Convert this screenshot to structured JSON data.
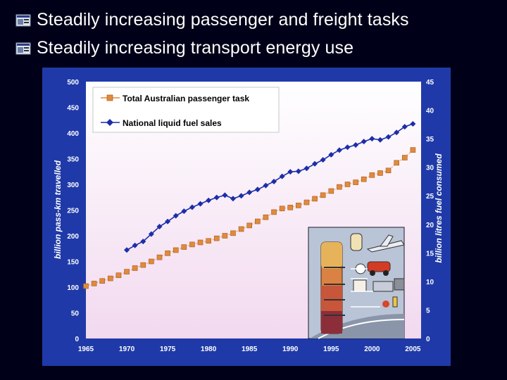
{
  "slide": {
    "bullets": [
      {
        "text": "Steadily increasing passenger and freight tasks",
        "icon": "slide-bullet-icon"
      },
      {
        "text": "Steadily increasing transport energy use",
        "icon": "slide-bullet-icon"
      }
    ]
  },
  "colors": {
    "background": "#000018",
    "chart_panel": "#1f3aa8",
    "plot_top": "#ffffff",
    "plot_bottom": "#f2d9ef",
    "passenger_series": "#e08a3c",
    "fuel_series": "#1c2ea8"
  },
  "chart_data": {
    "type": "line",
    "title": "",
    "x": [
      1965,
      1966,
      1967,
      1968,
      1969,
      1970,
      1971,
      1972,
      1973,
      1974,
      1975,
      1976,
      1977,
      1978,
      1979,
      1980,
      1981,
      1982,
      1983,
      1984,
      1985,
      1986,
      1987,
      1988,
      1989,
      1990,
      1991,
      1992,
      1993,
      1994,
      1995,
      1996,
      1997,
      1998,
      1999,
      2000,
      2001,
      2002,
      2003,
      2004,
      2005
    ],
    "xlim": [
      1965,
      2006
    ],
    "xticks": [
      "1965",
      "1970",
      "1975",
      "1980",
      "1985",
      "1990",
      "1995",
      "2000",
      "2005"
    ],
    "xlabel": "",
    "ylabel": "billion pass-km travelled",
    "ylim": [
      0,
      500
    ],
    "yticks": [
      "0",
      "50",
      "100",
      "150",
      "200",
      "250",
      "300",
      "350",
      "400",
      "450",
      "500"
    ],
    "y2label": "billion litres fuel consumed",
    "y2lim": [
      0,
      45
    ],
    "y2ticks": [
      "0",
      "5",
      "10",
      "15",
      "20",
      "25",
      "30",
      "35",
      "40",
      "45"
    ],
    "series": [
      {
        "name": "Total Australian passenger task",
        "axis": "left",
        "marker": "square",
        "values": [
          102,
          107,
          112,
          117,
          123,
          130,
          137,
          143,
          150,
          158,
          166,
          172,
          178,
          183,
          187,
          190,
          195,
          200,
          205,
          213,
          220,
          228,
          236,
          246,
          253,
          255,
          259,
          265,
          272,
          279,
          287,
          295,
          300,
          304,
          310,
          318,
          322,
          327,
          342,
          352,
          367
        ]
      },
      {
        "name": "National liquid fuel sales",
        "axis": "right",
        "marker": "diamond",
        "values": [
          null,
          null,
          null,
          null,
          null,
          15.5,
          16.3,
          17.0,
          18.3,
          19.6,
          20.5,
          21.5,
          22.3,
          23.0,
          23.6,
          24.2,
          24.7,
          25.1,
          24.5,
          25.0,
          25.6,
          26.1,
          26.8,
          27.5,
          28.4,
          29.2,
          29.3,
          29.8,
          30.6,
          31.3,
          32.2,
          33.0,
          33.5,
          33.9,
          34.5,
          35.0,
          34.8,
          35.3,
          36.1,
          37.1,
          37.6
        ]
      }
    ],
    "legend_position": "top-left"
  }
}
